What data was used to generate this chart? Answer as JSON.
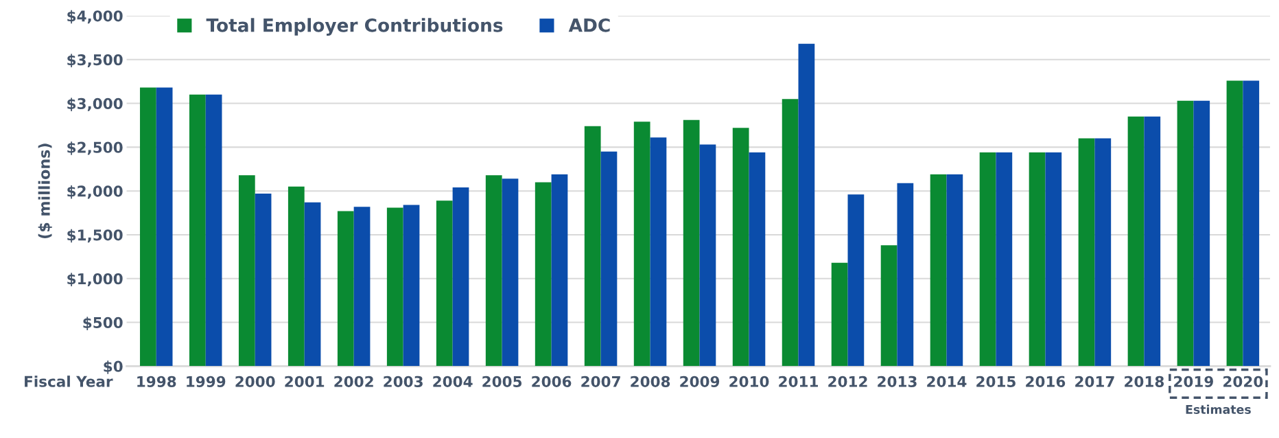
{
  "chart_data": {
    "type": "bar",
    "xlabel": "Fiscal Year",
    "ylabel": "($ millions)",
    "categories": [
      "1998",
      "1999",
      "2000",
      "2001",
      "2002",
      "2003",
      "2004",
      "2005",
      "2006",
      "2007",
      "2008",
      "2009",
      "2010",
      "2011",
      "2012",
      "2013",
      "2014",
      "2015",
      "2016",
      "2017",
      "2018",
      "2019",
      "2020"
    ],
    "series": [
      {
        "name": "Total Employer Contributions",
        "color": "#0a8a32",
        "values": [
          3180,
          3100,
          2180,
          2050,
          1770,
          1810,
          1890,
          2180,
          2100,
          2740,
          2790,
          2810,
          2720,
          3050,
          1180,
          1380,
          2190,
          2440,
          2440,
          2600,
          2850,
          3030,
          3260
        ]
      },
      {
        "name": "ADC",
        "color": "#0b4dab",
        "values": [
          3180,
          3100,
          1970,
          1870,
          1820,
          1840,
          2040,
          2140,
          2190,
          2450,
          2610,
          2530,
          2440,
          3680,
          1960,
          2090,
          2190,
          2440,
          2440,
          2600,
          2850,
          3030,
          3260
        ]
      }
    ],
    "ylim": [
      0,
      4000
    ],
    "yticks": [
      {
        "value": 0,
        "label": "$0"
      },
      {
        "value": 500,
        "label": "$500"
      },
      {
        "value": 1000,
        "label": "$1,000"
      },
      {
        "value": 1500,
        "label": "$1,500"
      },
      {
        "value": 2000,
        "label": "$2,000"
      },
      {
        "value": 2500,
        "label": "$2,500"
      },
      {
        "value": 3000,
        "label": "$3,000"
      },
      {
        "value": 3500,
        "label": "$3,500"
      },
      {
        "value": 4000,
        "label": "$4,000"
      }
    ],
    "grid": "y",
    "legend": "top",
    "annotations": [
      "Estimates"
    ]
  }
}
